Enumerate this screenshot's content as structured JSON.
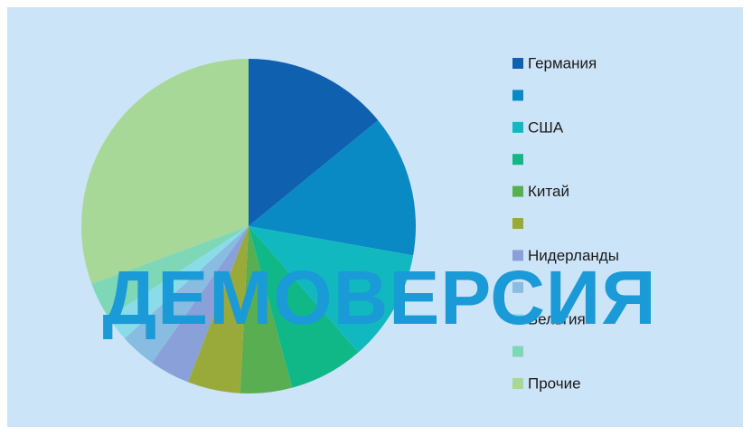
{
  "chart_data": {
    "type": "pie",
    "categories": [
      "Германия",
      null,
      "США",
      null,
      "Китай",
      null,
      "Нидерланды",
      null,
      "Бельгия",
      null,
      "Прочие"
    ],
    "values": [
      14.1,
      13.7,
      10.8,
      7.2,
      5.0,
      5.1,
      3.9,
      3.5,
      2.5,
      3.6,
      30.6
    ],
    "colors": [
      "#1060b0",
      "#0a8ac4",
      "#12b8c0",
      "#10b888",
      "#5aae52",
      "#9aaa3a",
      "#8aa0d8",
      "#88bce0",
      "#8adce8",
      "#7ed8b8",
      "#a8d898"
    ],
    "legend": "right",
    "watermark": "ДЕМОВЕРСИЯ"
  }
}
